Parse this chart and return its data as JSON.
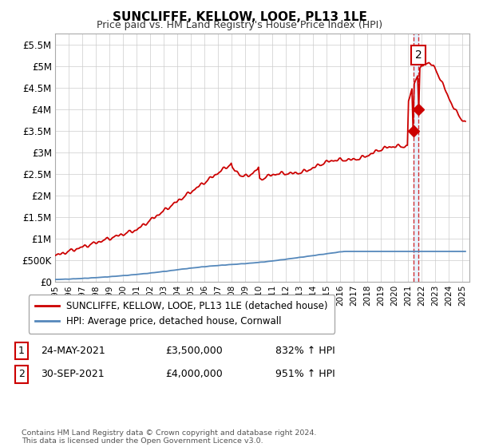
{
  "title": "SUNCLIFFE, KELLOW, LOOE, PL13 1LE",
  "subtitle": "Price paid vs. HM Land Registry's House Price Index (HPI)",
  "ylim": [
    0,
    5750000
  ],
  "yticks": [
    0,
    500000,
    1000000,
    1500000,
    2000000,
    2500000,
    3000000,
    3500000,
    4000000,
    4500000,
    5000000,
    5500000
  ],
  "ytick_labels": [
    "£0",
    "£500K",
    "£1M",
    "£1.5M",
    "£2M",
    "£2.5M",
    "£3M",
    "£3.5M",
    "£4M",
    "£4.5M",
    "£5M",
    "£5.5M"
  ],
  "hpi_color": "#5588bb",
  "price_color": "#cc0000",
  "sale1_date": 2021.38,
  "sale1_price": 3500000,
  "sale2_date": 2021.75,
  "sale2_price": 4000000,
  "vline_color": "#cc0000",
  "vband_color": "#ddeeff",
  "legend_label1": "SUNCLIFFE, KELLOW, LOOE, PL13 1LE (detached house)",
  "legend_label2": "HPI: Average price, detached house, Cornwall",
  "table_row1": [
    "1",
    "24-MAY-2021",
    "£3,500,000",
    "832% ↑ HPI"
  ],
  "table_row2": [
    "2",
    "30-SEP-2021",
    "£4,000,000",
    "951% ↑ HPI"
  ],
  "footnote": "Contains HM Land Registry data © Crown copyright and database right 2024.\nThis data is licensed under the Open Government Licence v3.0.",
  "background_color": "#ffffff",
  "grid_color": "#cccccc"
}
